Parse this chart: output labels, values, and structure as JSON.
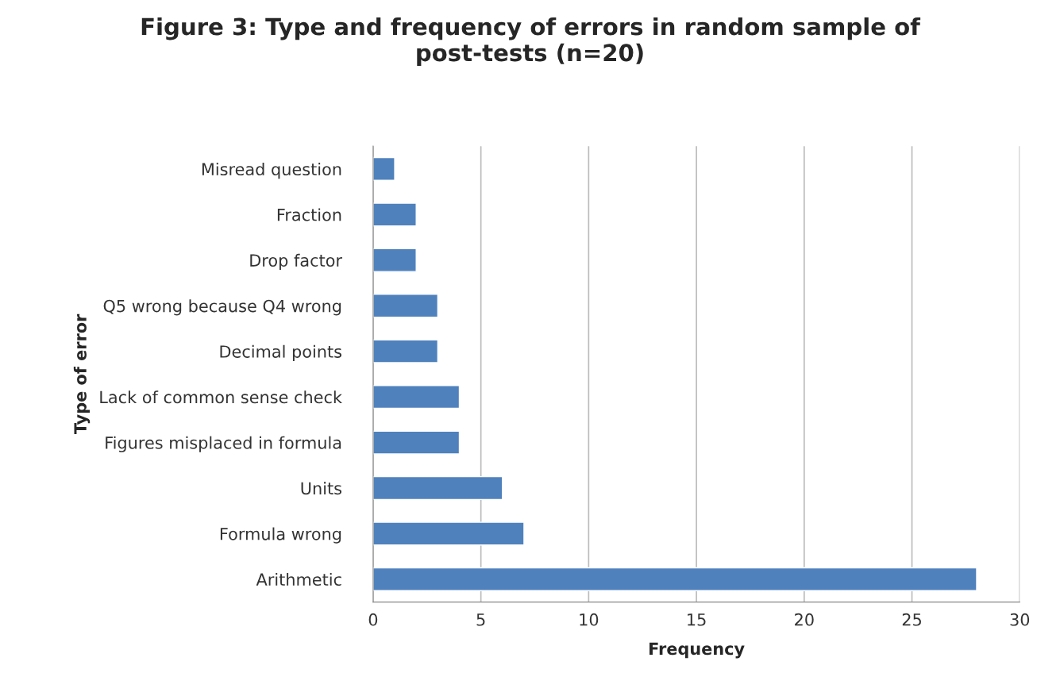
{
  "chart_data": {
    "type": "bar",
    "orientation": "horizontal",
    "title": "Figure 3: Type and frequency of errors in random sample of\npost-tests (n=20)",
    "xlabel": "Frequency",
    "ylabel": "Type of error",
    "categories": [
      "Misread question",
      "Fraction",
      "Drop factor",
      "Q5 wrong because Q4 wrong",
      "Decimal points",
      "Lack of common sense check",
      "Figures misplaced in formula",
      "Units",
      "Formula wrong",
      "Arithmetic"
    ],
    "values": [
      1,
      2,
      2,
      3,
      3,
      4,
      4,
      6,
      7,
      28
    ],
    "color": "#4f81bd",
    "xlim": [
      0,
      30
    ],
    "xticks": [
      0,
      5,
      10,
      15,
      20,
      25,
      30
    ],
    "grid": "x",
    "legend": false
  }
}
